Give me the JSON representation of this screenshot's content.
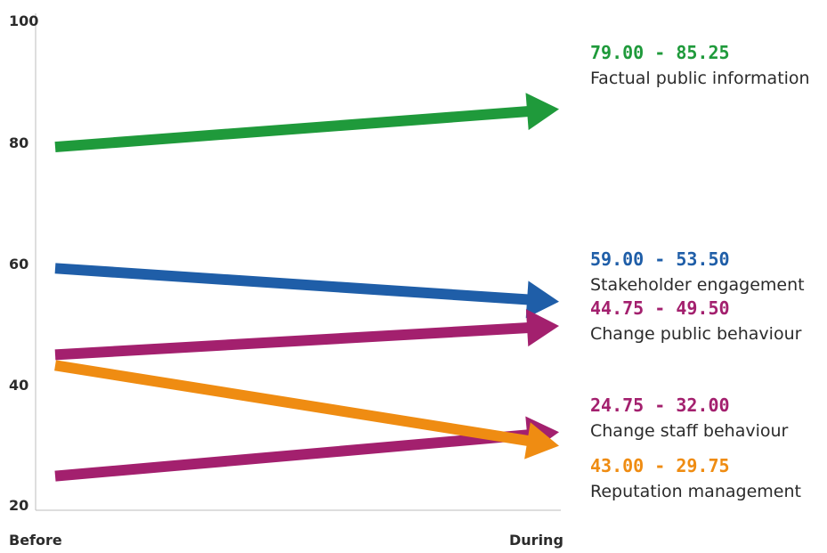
{
  "chart_data": {
    "type": "line",
    "x": [
      "Before",
      "During"
    ],
    "ylim": [
      20,
      100
    ],
    "y_ticks": [
      "100",
      "80",
      "60",
      "40",
      "20"
    ],
    "grid": false,
    "series": [
      {
        "name": "Factual public information",
        "range_label": "79.00 - 85.25",
        "color": "#1f9a3b",
        "values": [
          79.0,
          85.25
        ]
      },
      {
        "name": "Stakeholder engagement",
        "range_label": "59.00 - 53.50",
        "color": "#1f5ea8",
        "values": [
          59.0,
          53.5
        ]
      },
      {
        "name": "Change public behaviour",
        "range_label": "44.75 - 49.50",
        "color": "#a3206e",
        "values": [
          44.75,
          49.5
        ]
      },
      {
        "name": "Change staff behaviour",
        "range_label": "24.75 - 32.00",
        "color": "#a3206e",
        "values": [
          24.75,
          32.0
        ]
      },
      {
        "name": "Reputation management",
        "range_label": "43.00 - 29.75",
        "color": "#ef8c12",
        "values": [
          43.0,
          29.75
        ]
      }
    ]
  }
}
